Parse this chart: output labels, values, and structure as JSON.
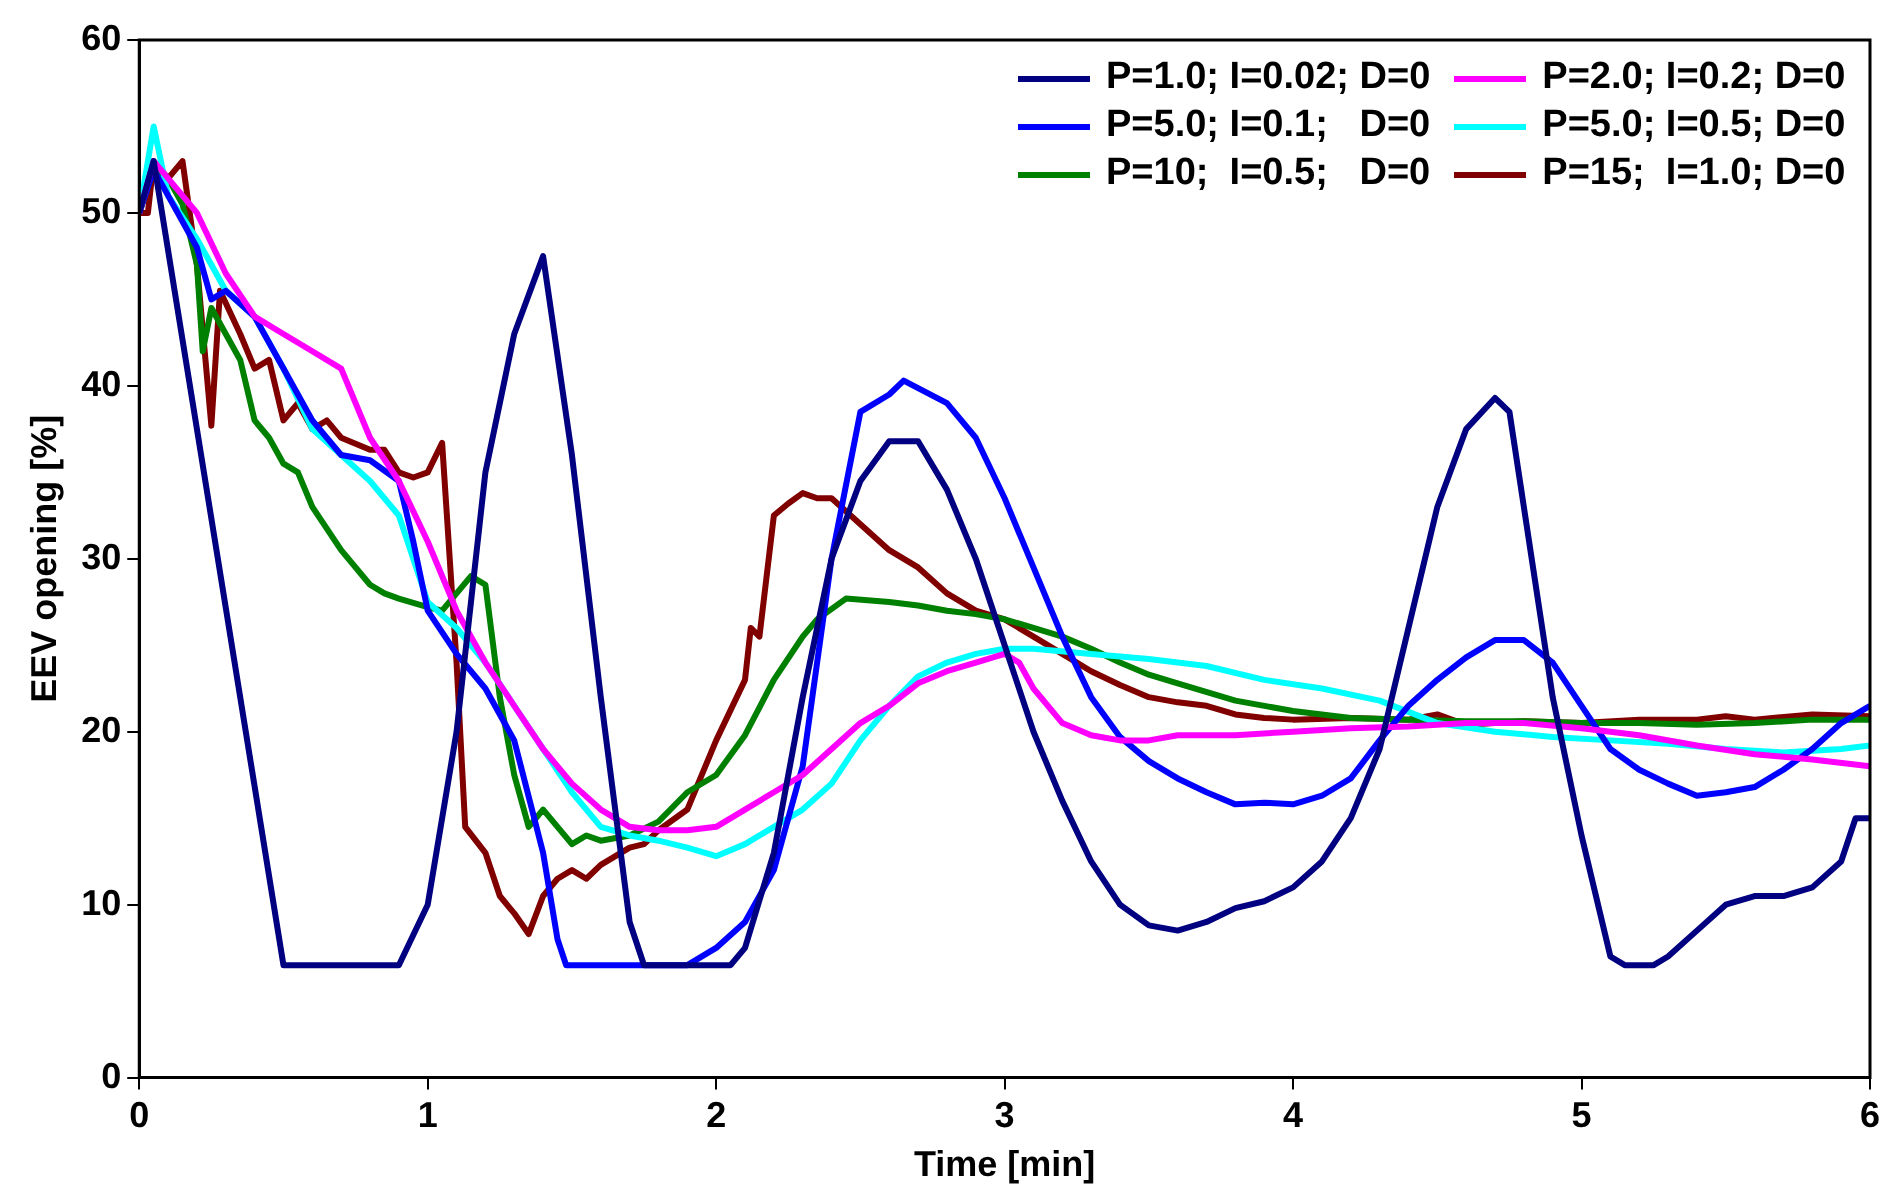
{
  "chart_data": {
    "type": "line",
    "xlabel": "Time [min]",
    "ylabel": "EEV opening [%]",
    "xlim": [
      0,
      6
    ],
    "xticks": [
      0,
      1,
      2,
      3,
      4,
      5,
      6
    ],
    "ylim": [
      0,
      60
    ],
    "yticks": [
      0,
      10,
      20,
      30,
      40,
      50,
      60
    ],
    "grid": false,
    "legend": "top right",
    "marker": "none",
    "line_style": "solid",
    "series": [
      {
        "name": "P=1.0; I=0.02; D=0",
        "color": "#000080",
        "x": [
          0,
          0.05,
          0.5,
          0.9,
          1.0,
          1.1,
          1.2,
          1.3,
          1.4,
          1.5,
          1.6,
          1.7,
          1.75,
          2.05,
          2.1,
          2.2,
          2.3,
          2.4,
          2.5,
          2.6,
          2.7,
          2.8,
          2.9,
          3.0,
          3.1,
          3.2,
          3.3,
          3.4,
          3.5,
          3.6,
          3.7,
          3.8,
          3.9,
          4.0,
          4.1,
          4.2,
          4.3,
          4.4,
          4.5,
          4.6,
          4.7,
          4.75,
          4.8,
          4.9,
          5.0,
          5.1,
          5.15,
          5.25,
          5.3,
          5.4,
          5.5,
          5.6,
          5.7,
          5.8,
          5.9,
          5.95,
          6.0
        ],
        "values": [
          50,
          53,
          6.5,
          6.5,
          10,
          20,
          35,
          43,
          47.5,
          36,
          22,
          9,
          6.5,
          6.5,
          7.5,
          13,
          22,
          30,
          34.5,
          36.8,
          36.8,
          34,
          30,
          25,
          20,
          16,
          12.5,
          10,
          8.8,
          8.5,
          9,
          9.8,
          10.2,
          11,
          12.5,
          15,
          19,
          26,
          33,
          37.5,
          39.3,
          38.5,
          33,
          22,
          14,
          7,
          6.5,
          6.5,
          7,
          8.5,
          10,
          10.5,
          10.5,
          11,
          12.5,
          15,
          15
        ]
      },
      {
        "name": "P=2.0; I=0.2; D=0",
        "color": "#ff00ff",
        "x": [
          0,
          0.05,
          0.1,
          0.2,
          0.3,
          0.4,
          0.5,
          0.6,
          0.7,
          0.8,
          0.9,
          1.0,
          1.1,
          1.2,
          1.3,
          1.4,
          1.5,
          1.6,
          1.7,
          1.8,
          1.9,
          2.0,
          2.1,
          2.2,
          2.3,
          2.4,
          2.5,
          2.6,
          2.7,
          2.8,
          2.9,
          3.0,
          3.05,
          3.1,
          3.2,
          3.3,
          3.4,
          3.5,
          3.6,
          3.8,
          4.0,
          4.2,
          4.4,
          4.6,
          4.8,
          5.0,
          5.2,
          5.4,
          5.6,
          5.8,
          6.0
        ],
        "values": [
          50,
          53,
          52,
          50,
          46.5,
          44,
          43,
          42,
          41,
          37,
          34.5,
          31,
          27,
          24,
          21.5,
          19,
          17,
          15.5,
          14.5,
          14.3,
          14.3,
          14.5,
          15.5,
          16.5,
          17.5,
          19,
          20.5,
          21.5,
          22.8,
          23.5,
          24,
          24.5,
          24,
          22.5,
          20.5,
          19.8,
          19.5,
          19.5,
          19.8,
          19.8,
          20,
          20.2,
          20.3,
          20.5,
          20.5,
          20.2,
          19.8,
          19.2,
          18.7,
          18.4,
          18
        ]
      },
      {
        "name": "P=5.0; I=0.1;   D=0",
        "color": "#0000ff",
        "x": [
          0,
          0.05,
          0.1,
          0.2,
          0.25,
          0.3,
          0.4,
          0.5,
          0.6,
          0.7,
          0.8,
          0.9,
          0.95,
          1.0,
          1.1,
          1.2,
          1.3,
          1.4,
          1.45,
          1.48,
          1.9,
          2.0,
          2.1,
          2.2,
          2.3,
          2.4,
          2.5,
          2.6,
          2.65,
          2.8,
          2.9,
          3.0,
          3.1,
          3.2,
          3.3,
          3.4,
          3.5,
          3.6,
          3.7,
          3.8,
          3.9,
          4.0,
          4.1,
          4.2,
          4.3,
          4.4,
          4.5,
          4.6,
          4.7,
          4.8,
          4.9,
          5.0,
          5.1,
          5.2,
          5.3,
          5.4,
          5.5,
          5.6,
          5.7,
          5.8,
          5.9,
          6.0
        ],
        "values": [
          50,
          52.5,
          51,
          48,
          45,
          45.5,
          44,
          41,
          38,
          36,
          35.7,
          34.5,
          31,
          27,
          24.5,
          22.5,
          19.5,
          13,
          8,
          6.5,
          6.5,
          7.5,
          9,
          12,
          18,
          30,
          38.5,
          39.5,
          40.3,
          39,
          37,
          33.5,
          29.5,
          25.5,
          22,
          19.7,
          18.3,
          17.3,
          16.5,
          15.8,
          15.9,
          15.8,
          16.3,
          17.3,
          19.5,
          21.5,
          23,
          24.3,
          25.3,
          25.3,
          24,
          21.5,
          19,
          17.8,
          17,
          16.3,
          16.5,
          16.8,
          17.8,
          19,
          20.5,
          21.5
        ]
      },
      {
        "name": "P=5.0; I=0.5; D=0",
        "color": "#00ffff",
        "x": [
          0,
          0.05,
          0.1,
          0.2,
          0.25,
          0.3,
          0.4,
          0.5,
          0.6,
          0.7,
          0.8,
          0.9,
          1.0,
          1.1,
          1.2,
          1.3,
          1.4,
          1.5,
          1.6,
          1.7,
          1.8,
          1.9,
          2.0,
          2.1,
          2.2,
          2.3,
          2.4,
          2.5,
          2.6,
          2.7,
          2.8,
          2.9,
          3.0,
          3.1,
          3.3,
          3.5,
          3.7,
          3.9,
          4.1,
          4.3,
          4.5,
          4.7,
          4.9,
          5.1,
          5.3,
          5.5,
          5.7,
          5.9,
          6.0
        ],
        "values": [
          50,
          55,
          51,
          48.5,
          47,
          45.5,
          44,
          41,
          37.5,
          36,
          34.5,
          32.5,
          27.5,
          26,
          24,
          21.5,
          19,
          16.5,
          14.5,
          14,
          13.7,
          13.3,
          12.8,
          13.5,
          14.5,
          15.5,
          17,
          19.5,
          21.5,
          23.2,
          24,
          24.5,
          24.8,
          24.8,
          24.5,
          24.2,
          23.8,
          23,
          22.5,
          21.8,
          20.5,
          20,
          19.7,
          19.5,
          19.3,
          19,
          18.8,
          19,
          19.2
        ]
      },
      {
        "name": "P=10;  I=0.5;   D=0",
        "color": "#008000",
        "x": [
          0,
          0.05,
          0.1,
          0.15,
          0.2,
          0.22,
          0.25,
          0.3,
          0.35,
          0.4,
          0.45,
          0.5,
          0.55,
          0.6,
          0.7,
          0.8,
          0.85,
          0.9,
          1.0,
          1.05,
          1.1,
          1.15,
          1.2,
          1.25,
          1.3,
          1.35,
          1.4,
          1.45,
          1.5,
          1.55,
          1.6,
          1.7,
          1.8,
          1.9,
          2.0,
          2.1,
          2.2,
          2.3,
          2.35,
          2.45,
          2.6,
          2.7,
          2.8,
          2.9,
          3.0,
          3.1,
          3.2,
          3.3,
          3.4,
          3.5,
          3.6,
          3.8,
          4.0,
          4.2,
          4.4,
          4.6,
          4.8,
          5.0,
          5.2,
          5.4,
          5.6,
          5.8,
          6.0
        ],
        "values": [
          50,
          52.5,
          52,
          50.5,
          47,
          42,
          44.5,
          43,
          41.5,
          38,
          37,
          35.5,
          35,
          33,
          30.5,
          28.5,
          28,
          27.7,
          27.2,
          27,
          28,
          29,
          28.5,
          22,
          17.5,
          14.5,
          15.5,
          14.5,
          13.5,
          14,
          13.7,
          14,
          14.8,
          16.5,
          17.5,
          19.8,
          23,
          25.5,
          26.5,
          27.7,
          27.5,
          27.3,
          27,
          26.8,
          26.5,
          26,
          25.5,
          24.8,
          24,
          23.3,
          22.8,
          21.8,
          21.2,
          20.8,
          20.7,
          20.6,
          20.6,
          20.5,
          20.5,
          20.4,
          20.5,
          20.7,
          20.7
        ]
      },
      {
        "name": "P=15;  I=1.0; D=0",
        "color": "#800000",
        "x": [
          0,
          0.03,
          0.05,
          0.1,
          0.15,
          0.2,
          0.25,
          0.28,
          0.35,
          0.4,
          0.45,
          0.5,
          0.55,
          0.6,
          0.65,
          0.7,
          0.8,
          0.85,
          0.9,
          0.95,
          1.0,
          1.05,
          1.1,
          1.13,
          1.2,
          1.25,
          1.3,
          1.35,
          1.4,
          1.45,
          1.5,
          1.55,
          1.6,
          1.7,
          1.75,
          1.8,
          1.9,
          2.0,
          2.1,
          2.12,
          2.15,
          2.2,
          2.25,
          2.3,
          2.35,
          2.4,
          2.5,
          2.6,
          2.7,
          2.8,
          2.9,
          3.0,
          3.1,
          3.2,
          3.3,
          3.4,
          3.5,
          3.6,
          3.7,
          3.8,
          3.9,
          4.0,
          4.2,
          4.4,
          4.5,
          4.6,
          4.8,
          5.0,
          5.2,
          5.4,
          5.5,
          5.6,
          5.8,
          6.0
        ],
        "values": [
          50,
          50,
          53,
          52,
          53,
          47,
          37.7,
          45.5,
          43,
          41,
          41.5,
          38,
          39,
          37.5,
          38,
          37,
          36.3,
          36.3,
          35,
          34.7,
          35,
          36.7,
          24,
          14.5,
          13,
          10.5,
          9.5,
          8.3,
          10.5,
          11.5,
          12,
          11.5,
          12.3,
          13.3,
          13.5,
          14.3,
          15.5,
          19.5,
          23,
          26,
          25.5,
          32.5,
          33.2,
          33.8,
          33.5,
          33.5,
          32,
          30.5,
          29.5,
          28,
          27,
          26.5,
          25.5,
          24.5,
          23.5,
          22.7,
          22,
          21.7,
          21.5,
          21,
          20.8,
          20.7,
          20.8,
          20.7,
          21,
          20.4,
          20.6,
          20.5,
          20.7,
          20.7,
          20.9,
          20.7,
          21,
          20.9
        ]
      }
    ]
  }
}
